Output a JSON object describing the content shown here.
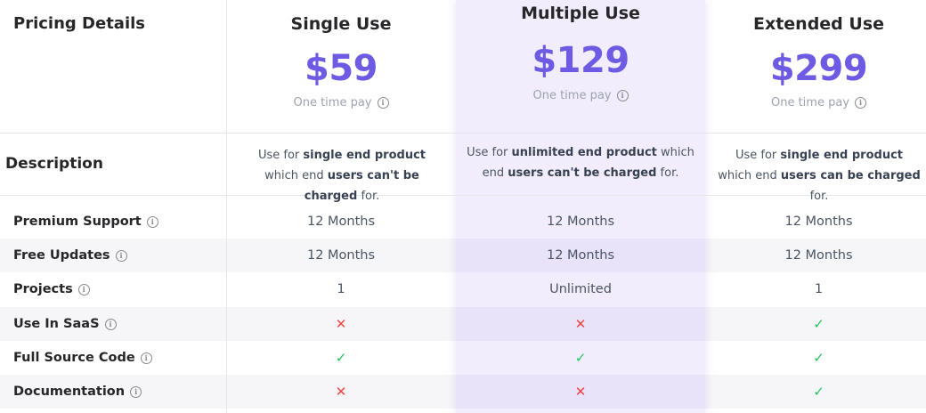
{
  "table": {
    "heading": "Pricing Details",
    "description_label": "Description",
    "plans": [
      {
        "name": "Single Use",
        "price": "$59",
        "pay_note": "One time pay",
        "desc": {
          "pre": "Use for ",
          "b1": "single end product",
          "mid": " which end ",
          "b2": "users can't be charged",
          "post": " for."
        }
      },
      {
        "name": "Multiple Use",
        "price": "$129",
        "pay_note": "One time pay",
        "desc": {
          "pre": "Use for ",
          "b1": "unlimited end product",
          "mid": " which end ",
          "b2": "users can't be charged",
          "post": " for."
        }
      },
      {
        "name": "Extended Use",
        "price": "$299",
        "pay_note": "One time pay",
        "desc": {
          "pre": "Use for ",
          "b1": "single end product",
          "mid": " which end ",
          "b2": "users can be charged",
          "post": " for."
        }
      }
    ],
    "features": [
      {
        "label": "Premium Support",
        "values": [
          "12 Months",
          "12 Months",
          "12 Months"
        ]
      },
      {
        "label": "Free Updates",
        "values": [
          "12 Months",
          "12 Months",
          "12 Months"
        ]
      },
      {
        "label": "Projects",
        "values": [
          "1",
          "Unlimited",
          "1"
        ]
      },
      {
        "label": "Use In SaaS",
        "values": [
          "✕",
          "✕",
          "✓"
        ]
      },
      {
        "label": "Full Source Code",
        "values": [
          "✓",
          "✓",
          "✓"
        ]
      },
      {
        "label": "Documentation",
        "values": [
          "✕",
          "✕",
          "✓"
        ]
      }
    ],
    "icons": {
      "info": "info-icon",
      "check": "check-icon",
      "cross": "cross-icon"
    },
    "colors": {
      "accent": "#6d5be3",
      "highlight_bg": "#f1edfd",
      "check": "#22c55e",
      "cross": "#ef4444"
    }
  }
}
